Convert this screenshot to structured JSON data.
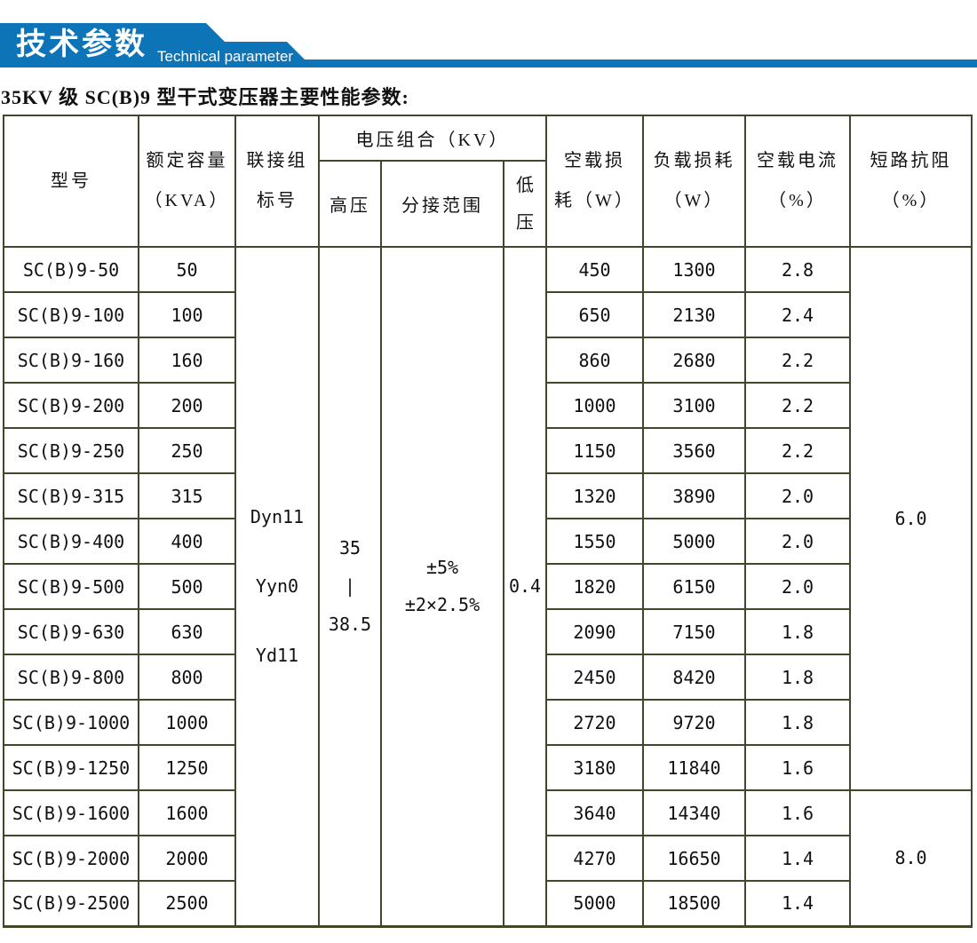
{
  "colors": {
    "banner": "#0d74b8",
    "border": "#45452a",
    "text": "#111111"
  },
  "banner": {
    "title": "技术参数",
    "subtitle": "Technical parameter"
  },
  "page_title": "35KV 级 SC(B)9 型干式变压器主要性能参数:",
  "table": {
    "headers": {
      "model": "型号",
      "capacity_l1": "额定容量",
      "capacity_l2": "（KVA）",
      "connection_l1": "联接组",
      "connection_l2": "标号",
      "voltage_group": "电压组合（KV）",
      "hv": "高压",
      "tap_range": "分接范围",
      "lv_l1": "低",
      "lv_l2": "压",
      "no_load_loss_l1": "空载损",
      "no_load_loss_l2": "耗（W）",
      "load_loss_l1": "负载损耗",
      "load_loss_l2": "（W）",
      "no_load_current_l1": "空载电流",
      "no_load_current_l2": "（%）",
      "impedance_l1": "短路抗阻",
      "impedance_l2": "（%）"
    },
    "merged": {
      "connection_labels": [
        "Dyn11",
        "Yyn0",
        "Yd11"
      ],
      "hv_lines": [
        "35",
        "|",
        "38.5"
      ],
      "tap_lines": [
        "±5%",
        "±2×2.5%"
      ],
      "lv_value": "0.4",
      "impedance_groups": [
        {
          "value": "6.0",
          "span": 12
        },
        {
          "value": "8.0",
          "span": 3
        }
      ]
    },
    "rows": [
      [
        "SC(B)9-50",
        "50",
        "450",
        "1300",
        "2.8"
      ],
      [
        "SC(B)9-100",
        "100",
        "650",
        "2130",
        "2.4"
      ],
      [
        "SC(B)9-160",
        "160",
        "860",
        "2680",
        "2.2"
      ],
      [
        "SC(B)9-200",
        "200",
        "1000",
        "3100",
        "2.2"
      ],
      [
        "SC(B)9-250",
        "250",
        "1150",
        "3560",
        "2.2"
      ],
      [
        "SC(B)9-315",
        "315",
        "1320",
        "3890",
        "2.0"
      ],
      [
        "SC(B)9-400",
        "400",
        "1550",
        "5000",
        "2.0"
      ],
      [
        "SC(B)9-500",
        "500",
        "1820",
        "6150",
        "2.0"
      ],
      [
        "SC(B)9-630",
        "630",
        "2090",
        "7150",
        "1.8"
      ],
      [
        "SC(B)9-800",
        "800",
        "2450",
        "8420",
        "1.8"
      ],
      [
        "SC(B)9-1000",
        "1000",
        "2720",
        "9720",
        "1.8"
      ],
      [
        "SC(B)9-1250",
        "1250",
        "3180",
        "11840",
        "1.6"
      ],
      [
        "SC(B)9-1600",
        "1600",
        "3640",
        "14340",
        "1.6"
      ],
      [
        "SC(B)9-2000",
        "2000",
        "4270",
        "16650",
        "1.4"
      ],
      [
        "SC(B)9-2500",
        "2500",
        "5000",
        "18500",
        "1.4"
      ]
    ]
  }
}
